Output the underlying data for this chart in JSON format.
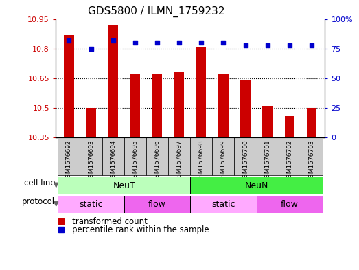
{
  "title": "GDS5800 / ILMN_1759232",
  "samples": [
    "GSM1576692",
    "GSM1576693",
    "GSM1576694",
    "GSM1576695",
    "GSM1576696",
    "GSM1576697",
    "GSM1576698",
    "GSM1576699",
    "GSM1576700",
    "GSM1576701",
    "GSM1576702",
    "GSM1576703"
  ],
  "transformed_count": [
    10.87,
    10.5,
    10.92,
    10.67,
    10.67,
    10.68,
    10.81,
    10.67,
    10.64,
    10.51,
    10.46,
    10.5
  ],
  "percentile_rank": [
    82,
    75,
    82,
    80,
    80,
    80,
    80,
    80,
    78,
    78,
    78,
    78
  ],
  "ymin": 10.35,
  "ymax": 10.95,
  "yticks": [
    10.35,
    10.5,
    10.65,
    10.8,
    10.95
  ],
  "ytick_labels": [
    "10.35",
    "10.5",
    "10.65",
    "10.8",
    "10.95"
  ],
  "y2ticks": [
    0,
    25,
    50,
    75,
    100
  ],
  "y2labels": [
    "0",
    "25",
    "50",
    "75",
    "100%"
  ],
  "bar_color": "#cc0000",
  "dot_color": "#0000cc",
  "bar_width": 0.45,
  "cell_line_groups": [
    {
      "label": "NeuT",
      "start": 0,
      "end": 6,
      "color": "#bbffbb"
    },
    {
      "label": "NeuN",
      "start": 6,
      "end": 12,
      "color": "#44ee44"
    }
  ],
  "protocol_groups": [
    {
      "label": "static",
      "start": 0,
      "end": 3,
      "color": "#ffaaff"
    },
    {
      "label": "flow",
      "start": 3,
      "end": 6,
      "color": "#ee66ee"
    },
    {
      "label": "static",
      "start": 6,
      "end": 9,
      "color": "#ffaaff"
    },
    {
      "label": "flow",
      "start": 9,
      "end": 12,
      "color": "#ee66ee"
    }
  ],
  "legend_red_label": "transformed count",
  "legend_blue_label": "percentile rank within the sample",
  "cell_line_label": "cell line",
  "protocol_label": "protocol",
  "tick_label_color": "#cc0000",
  "right_axis_color": "#0000cc",
  "sample_box_color": "#cccccc",
  "grid_color": "#000000",
  "grid_linestyle": "dotted",
  "grid_linewidth": 0.8
}
